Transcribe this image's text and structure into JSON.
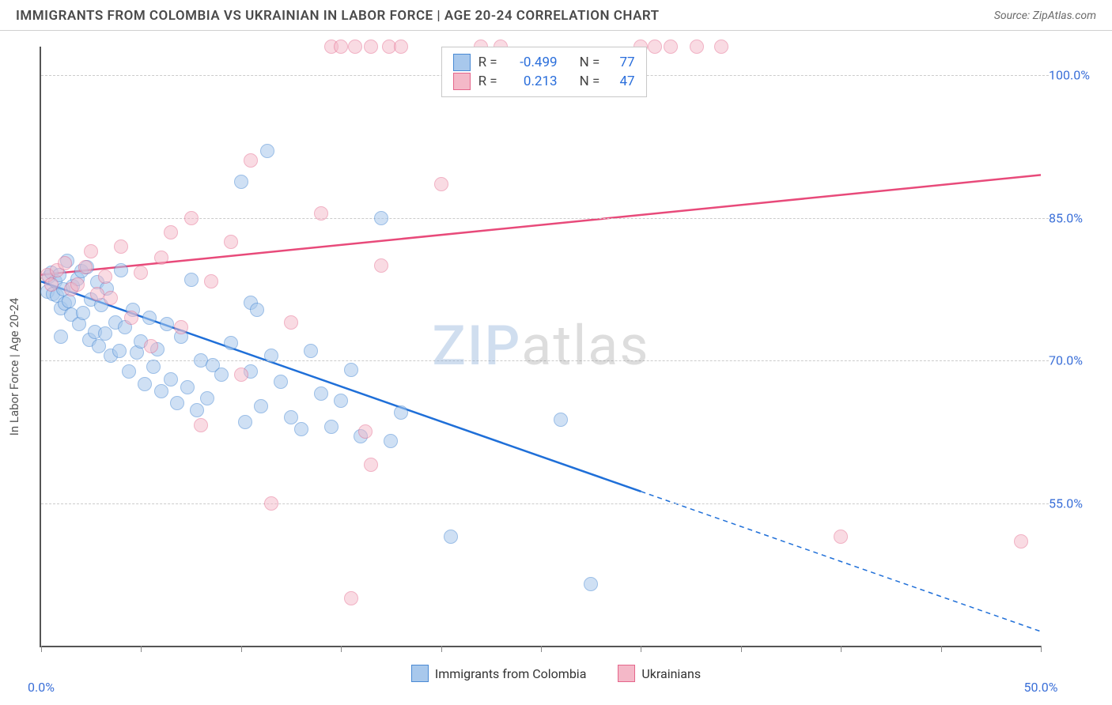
{
  "header": {
    "title": "IMMIGRANTS FROM COLOMBIA VS UKRAINIAN IN LABOR FORCE | AGE 20-24 CORRELATION CHART",
    "source": "Source: ZipAtlas.com"
  },
  "watermark": {
    "part1": "ZIP",
    "part2": "atlas"
  },
  "chart": {
    "type": "scatter",
    "y_axis_title": "In Labor Force | Age 20-24",
    "xlim": [
      0,
      50
    ],
    "ylim": [
      40,
      103
    ],
    "x_ticks": [
      0,
      5,
      10,
      15,
      20,
      25,
      30,
      35,
      40,
      45,
      50
    ],
    "x_tick_labels": {
      "0": "0.0%",
      "50": "50.0%"
    },
    "y_gridlines": [
      55,
      70,
      85,
      100
    ],
    "y_tick_labels": {
      "55": "55.0%",
      "70": "70.0%",
      "85": "85.0%",
      "100": "100.0%"
    },
    "background_color": "#ffffff",
    "grid_color": "#cccccc",
    "axis_label_color": "#3a6fd8",
    "marker_radius": 9,
    "series": [
      {
        "name": "Immigrants from Colombia",
        "fill": "#a8c8ec",
        "stroke": "#4a8ad4",
        "fill_opacity": 0.55,
        "R": "-0.499",
        "N": "77",
        "trend": {
          "x1": 0,
          "y1": 78.3,
          "x2": 50,
          "y2": 41.5,
          "color": "#1f6fd8",
          "solid_until_x": 30
        },
        "points": [
          [
            0.3,
            77.2
          ],
          [
            0.4,
            78.8
          ],
          [
            0.5,
            79.2
          ],
          [
            0.6,
            77.0
          ],
          [
            0.7,
            78.3
          ],
          [
            0.8,
            76.8
          ],
          [
            0.9,
            79.0
          ],
          [
            1.0,
            75.5
          ],
          [
            1.1,
            77.5
          ],
          [
            1.2,
            76.0
          ],
          [
            1.3,
            80.5
          ],
          [
            1.4,
            76.2
          ],
          [
            1.5,
            74.8
          ],
          [
            1.6,
            77.8
          ],
          [
            1.8,
            78.6
          ],
          [
            1.9,
            73.8
          ],
          [
            2.0,
            79.4
          ],
          [
            2.1,
            75.0
          ],
          [
            2.3,
            79.8
          ],
          [
            2.4,
            72.2
          ],
          [
            2.5,
            76.4
          ],
          [
            2.7,
            73.0
          ],
          [
            2.8,
            78.2
          ],
          [
            2.9,
            71.5
          ],
          [
            1.0,
            72.5
          ],
          [
            3.0,
            75.8
          ],
          [
            3.2,
            72.8
          ],
          [
            3.3,
            77.6
          ],
          [
            3.5,
            70.5
          ],
          [
            3.7,
            74.0
          ],
          [
            3.9,
            71.0
          ],
          [
            4.0,
            79.5
          ],
          [
            4.2,
            73.5
          ],
          [
            4.4,
            68.8
          ],
          [
            4.6,
            75.3
          ],
          [
            4.8,
            70.8
          ],
          [
            5.0,
            72.0
          ],
          [
            5.2,
            67.5
          ],
          [
            5.4,
            74.5
          ],
          [
            5.6,
            69.3
          ],
          [
            5.8,
            71.2
          ],
          [
            6.0,
            66.8
          ],
          [
            6.3,
            73.8
          ],
          [
            6.5,
            68.0
          ],
          [
            6.8,
            65.5
          ],
          [
            7.0,
            72.5
          ],
          [
            7.3,
            67.2
          ],
          [
            7.5,
            78.5
          ],
          [
            7.8,
            64.8
          ],
          [
            8.0,
            70.0
          ],
          [
            8.3,
            66.0
          ],
          [
            8.6,
            69.5
          ],
          [
            9.0,
            68.5
          ],
          [
            9.5,
            71.8
          ],
          [
            10.0,
            88.8
          ],
          [
            10.2,
            63.5
          ],
          [
            10.5,
            68.8
          ],
          [
            10.5,
            76.1
          ],
          [
            11.0,
            65.2
          ],
          [
            10.8,
            75.3
          ],
          [
            11.5,
            70.5
          ],
          [
            12.0,
            67.8
          ],
          [
            12.5,
            64.0
          ],
          [
            13.0,
            62.8
          ],
          [
            13.5,
            71.0
          ],
          [
            14.0,
            66.5
          ],
          [
            14.5,
            63.0
          ],
          [
            15.0,
            65.8
          ],
          [
            15.5,
            69.0
          ],
          [
            16.0,
            62.0
          ],
          [
            17.0,
            85.0
          ],
          [
            17.5,
            61.5
          ],
          [
            18.0,
            64.5
          ],
          [
            20.5,
            51.5
          ],
          [
            26.0,
            63.8
          ],
          [
            27.5,
            46.5
          ],
          [
            11.3,
            92.0
          ]
        ]
      },
      {
        "name": "Ukrainians",
        "fill": "#f4b8c8",
        "stroke": "#e5668b",
        "fill_opacity": 0.5,
        "R": "0.213",
        "N": "47",
        "trend": {
          "x1": 0,
          "y1": 79.0,
          "x2": 50,
          "y2": 89.5,
          "color": "#e84a7a",
          "solid_until_x": 50
        },
        "points": [
          [
            0.3,
            79.0
          ],
          [
            0.5,
            78.0
          ],
          [
            0.8,
            79.5
          ],
          [
            1.2,
            80.2
          ],
          [
            1.5,
            77.5
          ],
          [
            1.8,
            78.0
          ],
          [
            2.2,
            79.8
          ],
          [
            2.5,
            81.5
          ],
          [
            2.8,
            77.0
          ],
          [
            3.2,
            78.8
          ],
          [
            3.5,
            76.6
          ],
          [
            4.0,
            82.0
          ],
          [
            4.5,
            74.5
          ],
          [
            5.0,
            79.2
          ],
          [
            5.5,
            71.5
          ],
          [
            6.0,
            80.8
          ],
          [
            6.5,
            83.5
          ],
          [
            7.0,
            73.5
          ],
          [
            7.5,
            85.0
          ],
          [
            8.0,
            63.2
          ],
          [
            8.5,
            78.3
          ],
          [
            9.5,
            82.5
          ],
          [
            10.0,
            68.5
          ],
          [
            10.5,
            91.0
          ],
          [
            11.5,
            55.0
          ],
          [
            12.5,
            74.0
          ],
          [
            14.0,
            85.5
          ],
          [
            14.5,
            103.0
          ],
          [
            15.0,
            103.0
          ],
          [
            15.7,
            103.0
          ],
          [
            16.2,
            62.5
          ],
          [
            16.5,
            103.0
          ],
          [
            16.5,
            59.0
          ],
          [
            17.0,
            80.0
          ],
          [
            17.4,
            103.0
          ],
          [
            18.0,
            103.0
          ],
          [
            20.0,
            88.5
          ],
          [
            22.0,
            103.0
          ],
          [
            23.0,
            103.0
          ],
          [
            15.5,
            45.0
          ],
          [
            30.0,
            103.0
          ],
          [
            30.7,
            103.0
          ],
          [
            31.5,
            103.0
          ],
          [
            32.8,
            103.0
          ],
          [
            34.0,
            103.0
          ],
          [
            40.0,
            51.5
          ],
          [
            49.0,
            51.0
          ]
        ]
      }
    ],
    "legend_bottom": [
      {
        "label": "Immigrants from Colombia",
        "fill": "#a8c8ec",
        "stroke": "#4a8ad4"
      },
      {
        "label": "Ukrainians",
        "fill": "#f4b8c8",
        "stroke": "#e5668b"
      }
    ]
  }
}
